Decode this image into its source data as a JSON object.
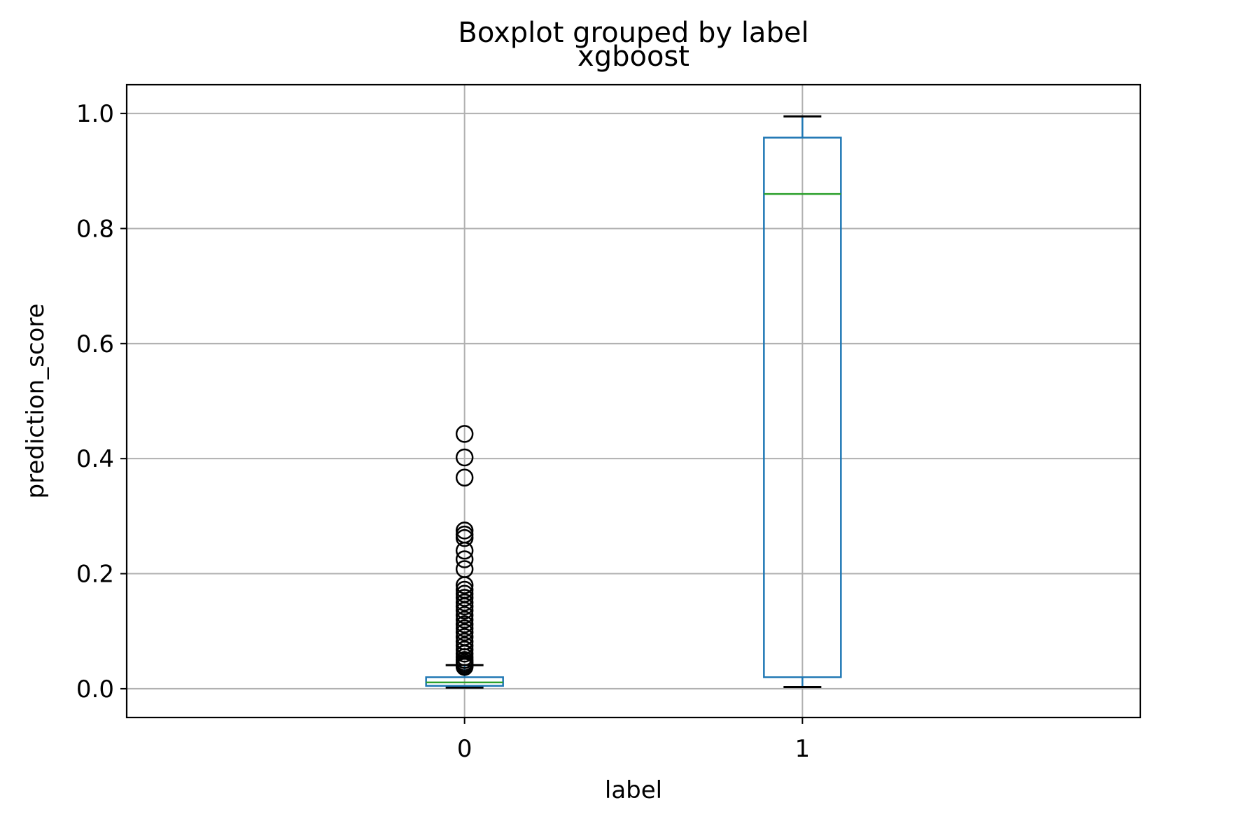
{
  "chart_data": {
    "type": "box",
    "suptitle": "Boxplot grouped by label",
    "title": "xgboost",
    "xlabel": "label",
    "ylabel": "prediction_score",
    "categories": [
      "0",
      "1"
    ],
    "ylim": [
      -0.05,
      1.05
    ],
    "yticks": [
      0.0,
      0.2,
      0.4,
      0.6,
      0.8,
      1.0
    ],
    "ytick_labels": [
      "0.0",
      "0.2",
      "0.4",
      "0.6",
      "0.8",
      "1.0"
    ],
    "grid": true,
    "boxes": [
      {
        "category": "0",
        "whisker_low": 0.002,
        "q1": 0.005,
        "median": 0.011,
        "q3": 0.02,
        "whisker_high": 0.041,
        "outliers": [
          0.443,
          0.402,
          0.367,
          0.275,
          0.268,
          0.262,
          0.24,
          0.225,
          0.208,
          0.18,
          0.172,
          0.165,
          0.158,
          0.15,
          0.143,
          0.136,
          0.128,
          0.12,
          0.112,
          0.105,
          0.098,
          0.09,
          0.082,
          0.075,
          0.068,
          0.061,
          0.055,
          0.05,
          0.046,
          0.043,
          0.04,
          0.038
        ]
      },
      {
        "category": "1",
        "whisker_low": 0.003,
        "q1": 0.02,
        "median": 0.86,
        "q3": 0.958,
        "whisker_high": 0.995,
        "outliers": []
      }
    ],
    "colors": {
      "box": "#1f77b4",
      "median": "#2ca02c",
      "whisker": "#1f77b4",
      "cap": "#000000",
      "flier": "#000000",
      "grid": "#b0b0b0"
    }
  }
}
